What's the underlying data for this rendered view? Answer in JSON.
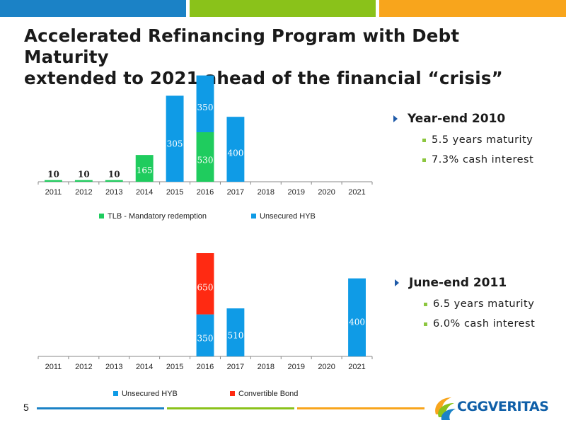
{
  "title": {
    "line1": "Accelerated Refinancing Program with Debt Maturity",
    "line2": "extended to 2021 ahead of the financial “crisis”"
  },
  "page_number": "5",
  "colors": {
    "blue": "#0f9be6",
    "green": "#1fcc5e",
    "red": "#ff2a12",
    "bar_green": "#8ac21a",
    "bar_orange": "#f8a51c",
    "bar_blue": "#1b82c6"
  },
  "logo": {
    "text": "CGGVERITAS"
  },
  "bullets_top": {
    "heading": "Year-end 2010",
    "items": [
      "5.5 years maturity",
      "7.3% cash interest"
    ]
  },
  "bullets_bottom": {
    "heading": "June-end 2011",
    "items": [
      "6.5 years maturity",
      "6.0% cash interest"
    ]
  },
  "chart_data": [
    {
      "type": "bar",
      "stacked": true,
      "categories": [
        "2011",
        "2012",
        "2013",
        "2014",
        "2015",
        "2016",
        "2017",
        "2018",
        "2019",
        "2020",
        "2021"
      ],
      "series": [
        {
          "name": "TLB - Mandatory redemption",
          "color": "#1fcc5e",
          "values": [
            10,
            10,
            10,
            165,
            0,
            305,
            0,
            0,
            0,
            0,
            0
          ]
        },
        {
          "name": "Unsecured HYB",
          "color": "#0f9be6",
          "values": [
            0,
            0,
            0,
            0,
            530,
            350,
            400,
            0,
            0,
            0,
            0
          ]
        }
      ],
      "labels": [
        "10",
        "10",
        "10",
        "165",
        "530",
        "305",
        "350",
        "400"
      ],
      "legend": "bottom",
      "ylim": [
        0,
        700
      ],
      "grid": false
    },
    {
      "type": "bar",
      "stacked": true,
      "categories": [
        "2011",
        "2012",
        "2013",
        "2014",
        "2015",
        "2016",
        "2017",
        "2018",
        "2019",
        "2020",
        "2021"
      ],
      "series": [
        {
          "name": "Unsecured HYB",
          "color": "#0f9be6",
          "values": [
            0,
            0,
            0,
            0,
            0,
            350,
            400,
            0,
            0,
            0,
            650
          ]
        },
        {
          "name": "Convertible Bond",
          "color": "#ff2a12",
          "values": [
            0,
            0,
            0,
            0,
            0,
            510,
            0,
            0,
            0,
            0,
            0
          ]
        }
      ],
      "labels": [
        "350",
        "510",
        "400",
        "650"
      ],
      "legend": "bottom",
      "ylim": [
        0,
        900
      ],
      "grid": false
    }
  ]
}
